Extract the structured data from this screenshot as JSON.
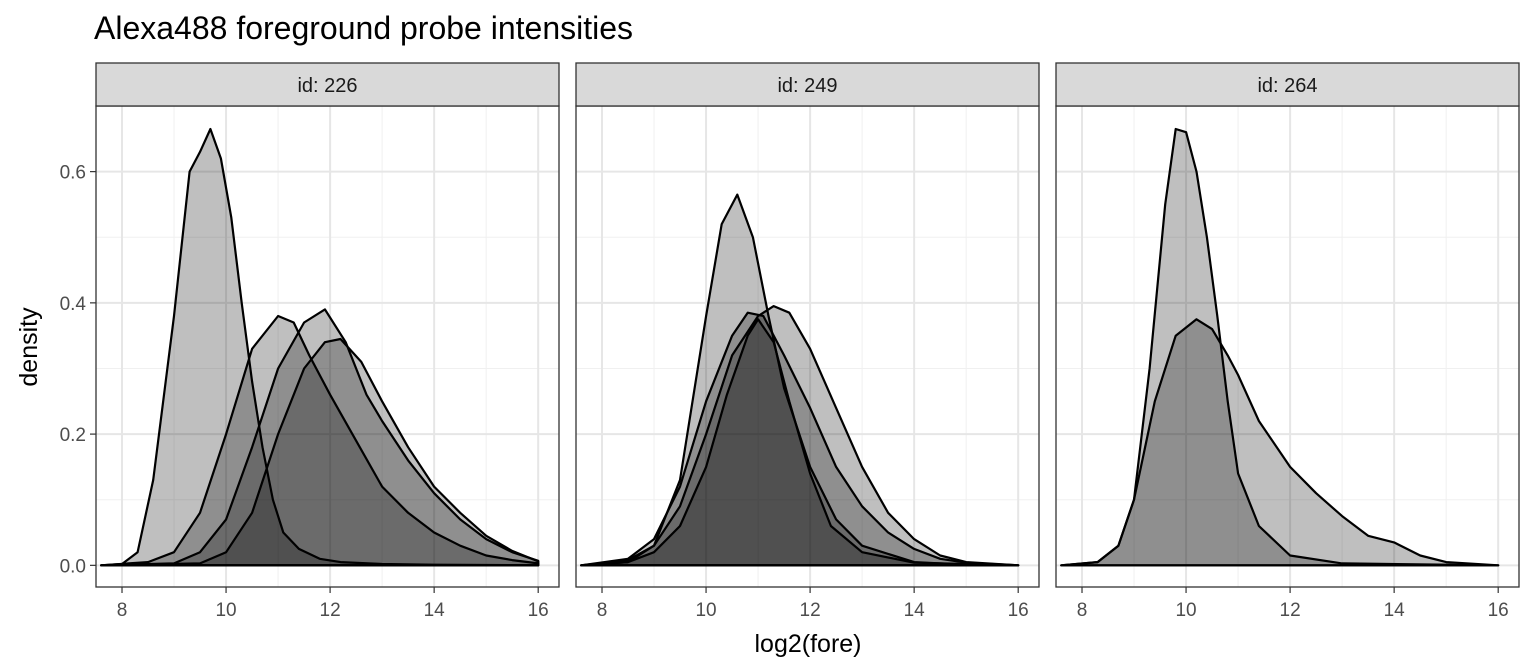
{
  "chart_data": {
    "type": "area",
    "title": "Alexa488 foreground probe intensities",
    "xlabel": "log2(fore)",
    "ylabel": "density",
    "xlim": [
      7.5,
      16.4
    ],
    "ylim": [
      -0.033,
      0.7
    ],
    "x_ticks": [
      8,
      10,
      12,
      14,
      16
    ],
    "y_ticks": [
      0.0,
      0.2,
      0.4,
      0.6
    ],
    "y_tick_labels": [
      "0.0",
      "0.2",
      "0.4",
      "0.6"
    ],
    "grid": true,
    "legend": "none",
    "fill_color": "#000000",
    "fill_opacity": 0.25,
    "line_color": "#000000",
    "panels": [
      {
        "label": "id: 226",
        "series": [
          {
            "x": [
              7.6,
              8.0,
              8.3,
              8.6,
              9.0,
              9.3,
              9.5,
              9.7,
              9.9,
              10.1,
              10.3,
              10.5,
              10.7,
              10.9,
              11.1,
              11.4,
              11.8,
              12.2,
              13.0,
              14.0,
              16.0
            ],
            "y": [
              0.0,
              0.002,
              0.02,
              0.13,
              0.38,
              0.6,
              0.63,
              0.665,
              0.62,
              0.53,
              0.4,
              0.28,
              0.18,
              0.1,
              0.05,
              0.025,
              0.01,
              0.005,
              0.002,
              0.001,
              0.0
            ]
          },
          {
            "x": [
              7.6,
              8.5,
              9.0,
              9.5,
              10.0,
              10.5,
              11.0,
              11.3,
              11.6,
              12.0,
              12.5,
              13.0,
              13.5,
              14.0,
              14.5,
              15.0,
              15.5,
              16.0
            ],
            "y": [
              0.0,
              0.005,
              0.02,
              0.08,
              0.2,
              0.33,
              0.38,
              0.37,
              0.32,
              0.26,
              0.19,
              0.12,
              0.08,
              0.05,
              0.03,
              0.015,
              0.008,
              0.003
            ]
          },
          {
            "x": [
              7.6,
              9.0,
              9.5,
              10.0,
              10.5,
              11.0,
              11.5,
              11.9,
              12.3,
              12.7,
              13.0,
              13.5,
              14.0,
              14.5,
              15.0,
              15.5,
              16.0
            ],
            "y": [
              0.0,
              0.003,
              0.02,
              0.07,
              0.18,
              0.3,
              0.37,
              0.39,
              0.34,
              0.26,
              0.22,
              0.16,
              0.11,
              0.07,
              0.04,
              0.02,
              0.007
            ]
          },
          {
            "x": [
              7.6,
              9.5,
              10.0,
              10.5,
              11.0,
              11.5,
              11.9,
              12.2,
              12.6,
              13.0,
              13.5,
              14.0,
              14.5,
              15.0,
              15.5,
              16.0
            ],
            "y": [
              0.0,
              0.003,
              0.02,
              0.08,
              0.2,
              0.3,
              0.34,
              0.345,
              0.31,
              0.25,
              0.18,
              0.12,
              0.08,
              0.045,
              0.022,
              0.006
            ]
          }
        ]
      },
      {
        "label": "id: 249",
        "series": [
          {
            "x": [
              7.6,
              8.5,
              9.0,
              9.5,
              10.0,
              10.3,
              10.6,
              10.9,
              11.2,
              11.5,
              12.0,
              12.5,
              13.0,
              14.0,
              15.0,
              16.0
            ],
            "y": [
              0.0,
              0.005,
              0.03,
              0.13,
              0.38,
              0.52,
              0.565,
              0.5,
              0.38,
              0.27,
              0.15,
              0.07,
              0.03,
              0.005,
              0.001,
              0.0
            ]
          },
          {
            "x": [
              7.6,
              8.5,
              9.0,
              9.5,
              10.0,
              10.5,
              10.8,
              11.1,
              11.5,
              12.0,
              12.5,
              13.0,
              13.5,
              14.0,
              14.5,
              15.0,
              16.0
            ],
            "y": [
              0.0,
              0.01,
              0.04,
              0.12,
              0.25,
              0.35,
              0.385,
              0.38,
              0.32,
              0.24,
              0.15,
              0.09,
              0.05,
              0.025,
              0.01,
              0.004,
              0.0
            ]
          },
          {
            "x": [
              7.6,
              8.5,
              9.0,
              9.5,
              10.0,
              10.5,
              11.0,
              11.3,
              11.6,
              12.0,
              12.5,
              13.0,
              13.5,
              14.0,
              14.5,
              15.0,
              16.0
            ],
            "y": [
              0.0,
              0.008,
              0.03,
              0.09,
              0.2,
              0.32,
              0.38,
              0.395,
              0.385,
              0.33,
              0.24,
              0.15,
              0.08,
              0.04,
              0.015,
              0.005,
              0.0
            ]
          },
          {
            "x": [
              7.6,
              8.5,
              9.0,
              9.5,
              10.0,
              10.4,
              10.8,
              11.0,
              11.3,
              11.6,
              12.0,
              12.4,
              13.0,
              14.0,
              16.0
            ],
            "y": [
              0.0,
              0.005,
              0.02,
              0.06,
              0.15,
              0.26,
              0.35,
              0.375,
              0.34,
              0.25,
              0.14,
              0.06,
              0.02,
              0.004,
              0.0
            ]
          }
        ]
      },
      {
        "label": "id: 264",
        "series": [
          {
            "x": [
              7.6,
              8.3,
              8.7,
              9.0,
              9.3,
              9.6,
              9.8,
              10.0,
              10.2,
              10.4,
              10.6,
              10.8,
              11.0,
              11.4,
              12.0,
              13.0,
              16.0
            ],
            "y": [
              0.0,
              0.005,
              0.03,
              0.1,
              0.3,
              0.55,
              0.665,
              0.66,
              0.6,
              0.5,
              0.38,
              0.25,
              0.14,
              0.06,
              0.015,
              0.003,
              0.0
            ]
          },
          {
            "x": [
              7.6,
              8.3,
              8.7,
              9.0,
              9.4,
              9.8,
              10.2,
              10.5,
              10.8,
              11.0,
              11.4,
              12.0,
              12.5,
              13.0,
              13.5,
              14.0,
              14.5,
              15.0,
              16.0
            ],
            "y": [
              0.0,
              0.005,
              0.03,
              0.1,
              0.25,
              0.35,
              0.375,
              0.36,
              0.32,
              0.29,
              0.22,
              0.15,
              0.11,
              0.075,
              0.045,
              0.035,
              0.015,
              0.005,
              0.0
            ]
          }
        ]
      }
    ]
  }
}
